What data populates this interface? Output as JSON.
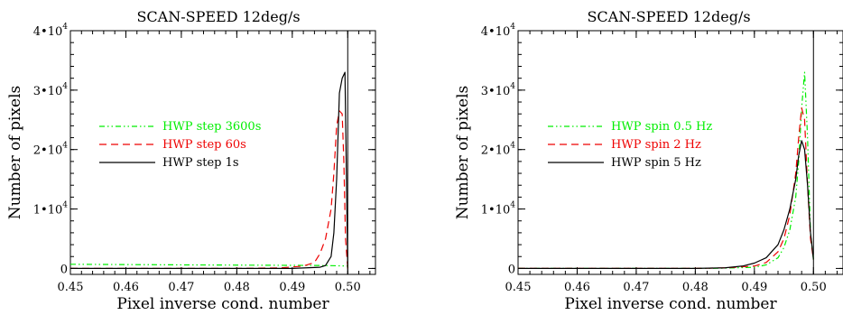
{
  "chart_data": [
    {
      "type": "line",
      "title": "SCAN-SPEED 12deg/s",
      "xlabel": "Pixel inverse cond. number",
      "ylabel": "Number of pixels",
      "xlim": [
        0.45,
        0.505
      ],
      "ylim": [
        -1000,
        40000
      ],
      "xticks": [
        0.45,
        0.46,
        0.47,
        0.48,
        0.49,
        0.5
      ],
      "xtick_labels": [
        "0.45",
        "0.46",
        "0.47",
        "0.48",
        "0.49",
        "0.50"
      ],
      "yticks": [
        0,
        10000,
        20000,
        30000,
        40000
      ],
      "ytick_labels": [
        {
          "mantissa": "0",
          "exponent": ""
        },
        {
          "mantissa": "1•10",
          "exponent": "4"
        },
        {
          "mantissa": "2•10",
          "exponent": "4"
        },
        {
          "mantissa": "3•10",
          "exponent": "4"
        },
        {
          "mantissa": "4•10",
          "exponent": "4"
        }
      ],
      "vline_x": 0.5,
      "legend_position": "left",
      "series": [
        {
          "name": "HWP step 3600s",
          "color": "#00ee00",
          "style": "dashdotdot",
          "x": [
            0.45,
            0.46,
            0.47,
            0.48,
            0.49,
            0.495,
            0.498,
            0.4995,
            0.5
          ],
          "y": [
            700,
            650,
            600,
            560,
            520,
            500,
            450,
            420,
            400
          ]
        },
        {
          "name": "HWP step 60s",
          "color": "#ee0000",
          "style": "dashed",
          "x": [
            0.45,
            0.46,
            0.47,
            0.48,
            0.488,
            0.492,
            0.494,
            0.495,
            0.496,
            0.497,
            0.4975,
            0.498,
            0.4985,
            0.499,
            0.4993,
            0.4996,
            0.5
          ],
          "y": [
            0,
            0,
            0,
            0,
            100,
            400,
            1000,
            2500,
            5000,
            10000,
            16000,
            24000,
            26500,
            26000,
            18000,
            5000,
            0
          ]
        },
        {
          "name": "HWP step 1s",
          "color": "#000000",
          "style": "solid",
          "x": [
            0.45,
            0.46,
            0.47,
            0.48,
            0.49,
            0.495,
            0.496,
            0.497,
            0.4975,
            0.498,
            0.4985,
            0.499,
            0.4995,
            0.5
          ],
          "y": [
            0,
            0,
            0,
            0,
            0,
            200,
            500,
            2000,
            6000,
            15000,
            29500,
            32000,
            33000,
            0
          ]
        }
      ]
    },
    {
      "type": "line",
      "title": "SCAN-SPEED 12deg/s",
      "xlabel": "Pixel inverse cond. number",
      "ylabel": "Number of pixels",
      "xlim": [
        0.45,
        0.505
      ],
      "ylim": [
        -1000,
        40000
      ],
      "xticks": [
        0.45,
        0.46,
        0.47,
        0.48,
        0.49,
        0.5
      ],
      "xtick_labels": [
        "0.45",
        "0.46",
        "0.47",
        "0.48",
        "0.49",
        "0.50"
      ],
      "yticks": [
        0,
        10000,
        20000,
        30000,
        40000
      ],
      "ytick_labels": [
        {
          "mantissa": "0",
          "exponent": ""
        },
        {
          "mantissa": "1•10",
          "exponent": "4"
        },
        {
          "mantissa": "2•10",
          "exponent": "4"
        },
        {
          "mantissa": "3•10",
          "exponent": "4"
        },
        {
          "mantissa": "4•10",
          "exponent": "4"
        }
      ],
      "vline_x": 0.5,
      "legend_position": "left",
      "series": [
        {
          "name": "HWP spin 0.5 Hz",
          "color": "#00ee00",
          "style": "dashdotdot",
          "x": [
            0.45,
            0.46,
            0.47,
            0.48,
            0.485,
            0.49,
            0.492,
            0.494,
            0.495,
            0.496,
            0.497,
            0.4975,
            0.498,
            0.4985,
            0.499,
            0.4995,
            0.5
          ],
          "y": [
            0,
            0,
            0,
            0,
            50,
            200,
            600,
            1800,
            3500,
            6500,
            12000,
            18000,
            27000,
            33000,
            22000,
            6000,
            1500
          ]
        },
        {
          "name": "HWP spin 2 Hz",
          "color": "#ee0000",
          "style": "dashed",
          "x": [
            0.45,
            0.46,
            0.47,
            0.48,
            0.485,
            0.49,
            0.492,
            0.494,
            0.495,
            0.496,
            0.497,
            0.4975,
            0.498,
            0.4985,
            0.499,
            0.4995,
            0.5
          ],
          "y": [
            0,
            0,
            0,
            0,
            100,
            400,
            1000,
            2800,
            5000,
            9000,
            16000,
            22000,
            27000,
            25000,
            14000,
            5000,
            1500
          ]
        },
        {
          "name": "HWP spin 5 Hz",
          "color": "#000000",
          "style": "solid",
          "x": [
            0.45,
            0.46,
            0.47,
            0.48,
            0.485,
            0.488,
            0.49,
            0.492,
            0.494,
            0.495,
            0.496,
            0.497,
            0.4975,
            0.498,
            0.4985,
            0.499,
            0.4995,
            0.5
          ],
          "y": [
            0,
            0,
            0,
            0,
            100,
            400,
            900,
            1800,
            4000,
            6500,
            10000,
            15000,
            19000,
            21500,
            20000,
            14000,
            6000,
            1500
          ]
        }
      ]
    }
  ]
}
